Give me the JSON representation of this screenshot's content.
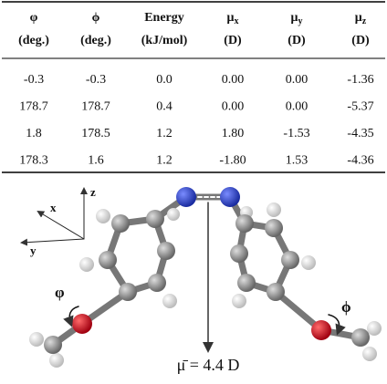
{
  "table": {
    "headers": [
      {
        "symbol": "φ",
        "unit": "(deg.)"
      },
      {
        "symbol": "ϕ",
        "unit": "(deg.)"
      },
      {
        "symbol": "Energy",
        "unit": "(kJ/mol)"
      },
      {
        "symbol": "μ",
        "sub": "x",
        "unit": "(D)"
      },
      {
        "symbol": "μ",
        "sub": "y",
        "unit": "(D)"
      },
      {
        "symbol": "μ",
        "sub": "z",
        "unit": "(D)"
      }
    ],
    "rows": [
      [
        "-0.3",
        "-0.3",
        "0.0",
        "0.00",
        "0.00",
        "-1.36"
      ],
      [
        "178.7",
        "178.7",
        "0.4",
        "0.00",
        "0.00",
        "-5.37"
      ],
      [
        "1.8",
        "178.5",
        "1.2",
        "1.80",
        "-1.53",
        "-4.35"
      ],
      [
        "178.3",
        "1.6",
        "1.2",
        "-1.80",
        "1.53",
        "-4.36"
      ]
    ]
  },
  "diagram": {
    "axes": {
      "x": "x",
      "y": "y",
      "z": "z"
    },
    "phi_left": "φ",
    "phi_right": "ϕ",
    "dipole": "μ̄ = 4.4 D"
  }
}
